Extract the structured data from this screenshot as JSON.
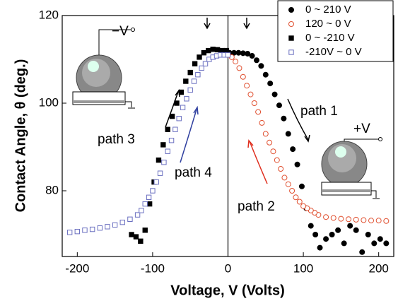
{
  "chart_data": {
    "type": "scatter",
    "xlabel": "Voltage, V (Volts)",
    "ylabel": "Contact Angle, θ (deg.)",
    "xlim": [
      -220,
      220
    ],
    "xticks": [
      -200,
      -100,
      0,
      100,
      200
    ],
    "ylim": [
      65,
      120
    ],
    "yticks": [
      80,
      100,
      120
    ],
    "legend": "upper right",
    "annotations": [
      "path 1",
      "path 2",
      "path 3",
      "path 4",
      "−V",
      "+V"
    ],
    "series": [
      {
        "name": "0 ~ 210 V",
        "color": "#000000",
        "marker": "circle",
        "filled": true,
        "x": [
          2,
          8,
          14,
          20,
          26,
          32,
          38,
          44,
          50,
          56,
          62,
          68,
          74,
          80,
          86,
          92,
          98,
          104,
          110,
          116,
          122,
          130,
          138,
          146,
          154,
          162,
          170,
          178,
          186,
          194,
          202,
          210
        ],
        "values": [
          111.5,
          111.5,
          111.5,
          111.4,
          111.3,
          110.8,
          109.8,
          108.5,
          106.5,
          104.5,
          102,
          99.5,
          96.5,
          93,
          89.5,
          86,
          81,
          76,
          72,
          70,
          67,
          69,
          70,
          71,
          68,
          72,
          71,
          66,
          70,
          68,
          69,
          68
        ]
      },
      {
        "name": "120 ~ 0 V",
        "color": "#e05030",
        "marker": "circle",
        "filled": false,
        "x": [
          120,
          115,
          110,
          105,
          100,
          95,
          90,
          85,
          80,
          75,
          70,
          65,
          60,
          55,
          50,
          45,
          40,
          35,
          30,
          25,
          20,
          15,
          10,
          5,
          0,
          130,
          140,
          150,
          160,
          170,
          180,
          190,
          200,
          210
        ],
        "values": [
          74.5,
          75,
          75.5,
          76,
          76.5,
          77.5,
          78.5,
          80,
          81.5,
          83,
          85,
          87,
          89,
          91,
          93,
          95.5,
          98,
          100,
          102,
          104,
          106,
          108,
          109.5,
          110.5,
          111,
          74,
          73.8,
          73.6,
          73.5,
          73.4,
          73.3,
          73.2,
          73.2,
          73.1
        ]
      },
      {
        "name": "0 ~ -210 V",
        "color": "#000000",
        "marker": "square",
        "filled": true,
        "x": [
          -2,
          -8,
          -14,
          -20,
          -26,
          -32,
          -38,
          -44,
          -50,
          -56,
          -62,
          -68,
          -74,
          -80,
          -86,
          -92,
          -98,
          -104,
          -110,
          -116,
          -122,
          -128
        ],
        "values": [
          112,
          112,
          112.2,
          112.3,
          112,
          111.5,
          110.5,
          109,
          107,
          105,
          102.5,
          100,
          97,
          94,
          90.5,
          87,
          82,
          77,
          71,
          68.5,
          69.5,
          70
        ]
      },
      {
        "name": "-210V ~ 0 V",
        "color": "#6a6fc0",
        "marker": "square",
        "filled": false,
        "x": [
          -210,
          -200,
          -190,
          -180,
          -170,
          -160,
          -150,
          -140,
          -130,
          -120,
          -115,
          -110,
          -105,
          -100,
          -95,
          -90,
          -85,
          -80,
          -75,
          -70,
          -65,
          -60,
          -55,
          -50,
          -45,
          -40,
          -35,
          -30,
          -25,
          -20,
          -15,
          -10,
          -5,
          0
        ],
        "values": [
          70.5,
          70.7,
          71,
          71.2,
          71.5,
          71.8,
          72.2,
          72.8,
          73.5,
          74.5,
          75.5,
          77,
          78.5,
          80,
          82,
          84,
          86.5,
          89,
          91.5,
          94,
          96.5,
          99,
          101,
          103,
          105,
          106.5,
          108,
          109,
          110,
          110.5,
          110.8,
          111,
          111,
          111
        ]
      }
    ]
  }
}
